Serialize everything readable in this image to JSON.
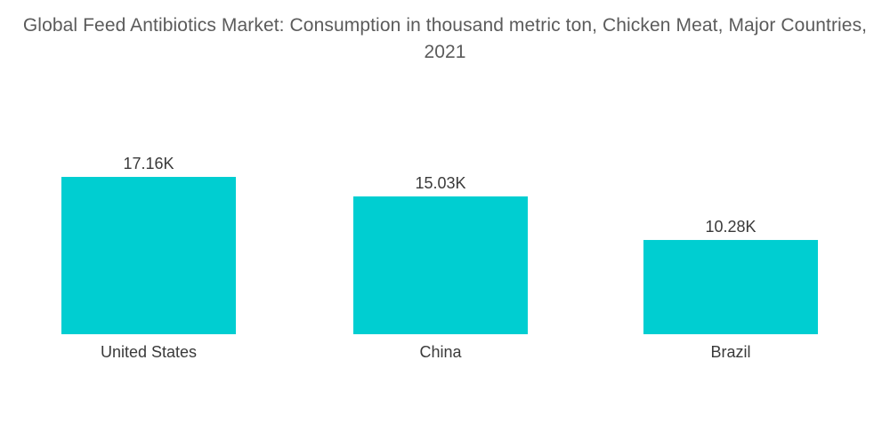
{
  "chart_data": {
    "type": "bar",
    "title": "Global Feed Antibiotics Market: Consumption in thousand metric ton, Chicken Meat, Major Countries, 2021",
    "categories": [
      "United States",
      "China",
      "Brazil"
    ],
    "values": [
      17.16,
      15.03,
      10.28
    ],
    "value_labels": [
      "17.16K",
      "15.03K",
      "10.28K"
    ],
    "xlabel": "",
    "ylabel": "",
    "ylim": [
      0,
      17.16
    ],
    "grid": false,
    "legend": "none",
    "colors": {
      "bar": "#00ced1"
    }
  }
}
